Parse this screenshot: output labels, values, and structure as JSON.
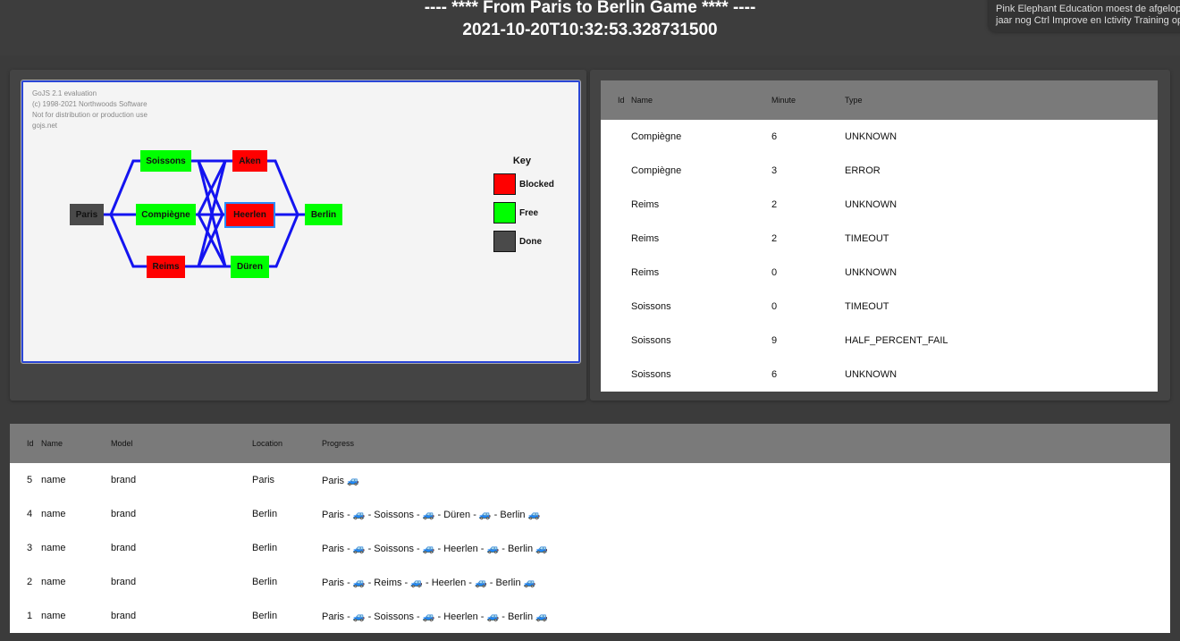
{
  "header": {
    "title": "---- **** From Paris to Berlin Game **** ----",
    "timestamp": "2021-10-20T10:32:53.328731500"
  },
  "notification": {
    "line1": "Pink Elephant Education moest de afgelope",
    "line2": "jaar nog Ctrl Improve en Ictivity Training op"
  },
  "diagram": {
    "watermark": [
      "GoJS 2.1 evaluation",
      "(c) 1998-2021 Northwoods Software",
      "Not for distribution or production use",
      "gojs.net"
    ],
    "link_color": "#1414f0",
    "nodes": [
      {
        "id": "paris",
        "label": "Paris",
        "status": "Done"
      },
      {
        "id": "soissons",
        "label": "Soissons",
        "status": "Free"
      },
      {
        "id": "compiegne",
        "label": "Compiègne",
        "status": "Free"
      },
      {
        "id": "reims",
        "label": "Reims",
        "status": "Blocked"
      },
      {
        "id": "aken",
        "label": "Aken",
        "status": "Blocked"
      },
      {
        "id": "heerlen",
        "label": "Heerlen",
        "status": "Blocked",
        "selected": true
      },
      {
        "id": "duren",
        "label": "Düren",
        "status": "Free"
      },
      {
        "id": "berlin",
        "label": "Berlin",
        "status": "Free"
      }
    ],
    "key": {
      "title": "Key",
      "items": [
        {
          "label": "Blocked",
          "color": "#ff0000"
        },
        {
          "label": "Free",
          "color": "#00ff00"
        },
        {
          "label": "Done",
          "color": "#4a4a4a"
        }
      ]
    }
  },
  "events": {
    "columns": [
      "Id",
      "Name",
      "Minute",
      "Type"
    ],
    "rows": [
      [
        "",
        "Compiègne",
        "6",
        "UNKNOWN"
      ],
      [
        "",
        "Compiègne",
        "3",
        "ERROR"
      ],
      [
        "",
        "Reims",
        "2",
        "UNKNOWN"
      ],
      [
        "",
        "Reims",
        "2",
        "TIMEOUT"
      ],
      [
        "",
        "Reims",
        "0",
        "UNKNOWN"
      ],
      [
        "",
        "Soissons",
        "0",
        "TIMEOUT"
      ],
      [
        "",
        "Soissons",
        "9",
        "HALF_PERCENT_FAIL"
      ],
      [
        "",
        "Soissons",
        "6",
        "UNKNOWN"
      ]
    ]
  },
  "cars": {
    "columns": [
      "Id",
      "Name",
      "Model",
      "Location",
      "Progress"
    ],
    "rows": [
      [
        "5",
        "name",
        "brand",
        "Paris",
        "Paris 🚙"
      ],
      [
        "4",
        "name",
        "brand",
        "Berlin",
        "Paris - 🚙 - Soissons - 🚙 - Düren - 🚙 - Berlin 🚙"
      ],
      [
        "3",
        "name",
        "brand",
        "Berlin",
        "Paris - 🚙 - Soissons - 🚙 - Heerlen - 🚙 - Berlin 🚙"
      ],
      [
        "2",
        "name",
        "brand",
        "Berlin",
        "Paris - 🚙 - Reims - 🚙 - Heerlen - 🚙 - Berlin 🚙"
      ],
      [
        "1",
        "name",
        "brand",
        "Berlin",
        "Paris - 🚙 - Soissons - 🚙 - Heerlen - 🚙 - Berlin 🚙"
      ]
    ]
  }
}
